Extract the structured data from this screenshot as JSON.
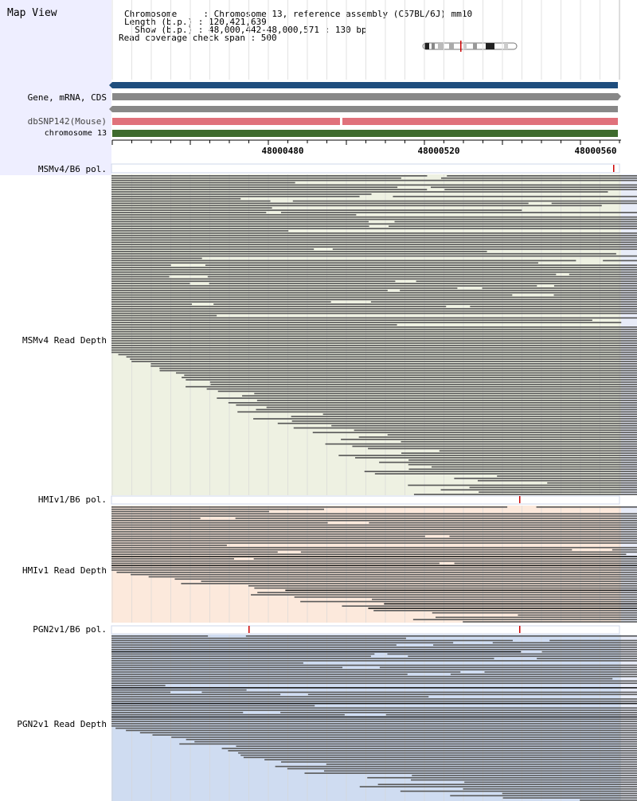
{
  "title": "Map View",
  "header": {
    "line1": "Chromosome     : Chromosome 13, reference assembly (C57BL/6J) mm10",
    "line2": "Length (b.p.) : 120,421,639",
    "line3": "  Show (b.p.) : 48,000,442-48,000,571 : 130 bp",
    "line4": "Read coverage check span : 500"
  },
  "tracks": {
    "gene_label": "Gene, mRNA, CDS",
    "dbsnp_label": "dbSNP142(Mouse)",
    "chrom_label": "chromosome 13"
  },
  "ruler": {
    "ticks": [
      "48000480",
      "48000520",
      "48000560"
    ]
  },
  "samples": [
    {
      "pol_label": "MSMv4/B6 pol.",
      "depth_label": "MSMv4 Read Depth",
      "bg_color": "#eef1e2"
    },
    {
      "pol_label": "HMIv1/B6 pol.",
      "depth_label": "HMIv1 Read Depth",
      "bg_color": "#fce9dc"
    },
    {
      "pol_label": "PGN2v1/B6 pol.",
      "depth_label": "PGN2v1 Read Depth",
      "bg_color": "#cfdcf1"
    }
  ],
  "colors": {
    "gene_blue": "#1f4e7e",
    "gray_track": "#888888",
    "dbsnp_pink": "#e0717b",
    "chrom_green": "#3e6b2e",
    "read_gray": "#5a5a5a",
    "read_dark": "#1a1a1a",
    "variant_red": "#cc0000"
  }
}
